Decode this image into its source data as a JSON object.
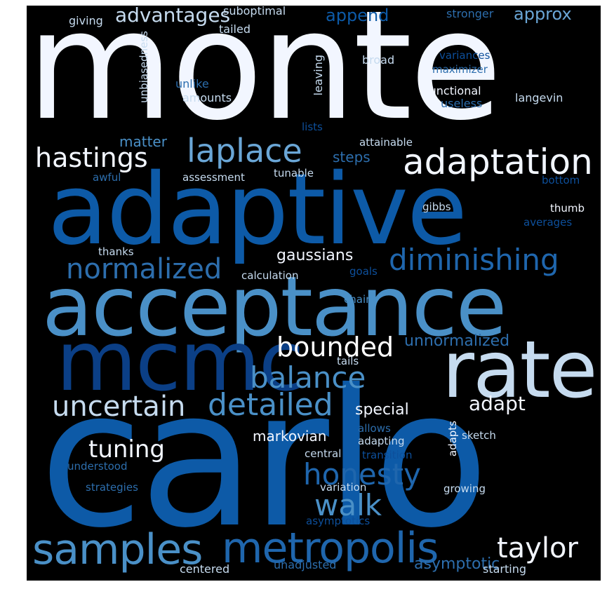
{
  "palette": {
    "background": "#000000",
    "white": "#f2f6ff",
    "light_blue": "#c6dbef",
    "blue": "#4a90c7",
    "mid_blue": "#2d6ead",
    "dark_blue": "#0d4f9b",
    "deep_blue": "#0b3f86"
  },
  "words": {
    "monte": "monte",
    "carlo": "carlo",
    "adaptive": "adaptive",
    "acceptance": "acceptance",
    "mcmc": "mcmc",
    "rate": "rate",
    "metropolis": "metropolis",
    "samples": "samples",
    "adaptation": "adaptation",
    "laplace": "laplace",
    "hastings": "hastings",
    "diminishing": "diminishing",
    "normalized": "normalized",
    "bounded": "bounded",
    "balance": "balance",
    "detailed": "detailed",
    "uncertain": "uncertain",
    "honesty": "honesty",
    "walk": "walk",
    "taylor": "taylor",
    "tuning": "tuning",
    "adapt": "adapt",
    "advantages": "advantages",
    "approx": "approx",
    "append": "append",
    "gaussians": "gaussians",
    "unnormalized": "unnormalized",
    "special": "special",
    "asymptotic": "asymptotic",
    "markovian": "markovian",
    "giving": "giving",
    "suboptimal": "suboptimal",
    "tailed": "tailed",
    "stronger": "stronger",
    "unbiasedness": "unbiasedness",
    "leaving": "leaving",
    "broad": "broad",
    "variances": "variances",
    "maximizer": "maximizer",
    "unlike": "unlike",
    "amounts": "amounts",
    "functional": "functional",
    "useless": "useless",
    "langevin": "langevin",
    "lists": "lists",
    "attainable": "attainable",
    "matter": "matter",
    "steps": "steps",
    "awful": "awful",
    "assessment": "assessment",
    "tunable": "tunable",
    "bottom": "bottom",
    "gibbs": "gibbs",
    "thumb": "thumb",
    "averages": "averages",
    "thanks": "thanks",
    "calculation": "calculation",
    "goals": "goals",
    "chains": "chains",
    "tails": "tails",
    "allows": "allows",
    "adapting": "adapting",
    "adapts": "adapts",
    "sketch": "sketch",
    "central": "central",
    "transition": "transition",
    "understood": "understood",
    "strategies": "strategies",
    "variation": "variation",
    "growing": "growing",
    "asymptotics": "asymptotics",
    "centered": "centered",
    "unadjusted": "unadjusted",
    "starting": "starting"
  }
}
